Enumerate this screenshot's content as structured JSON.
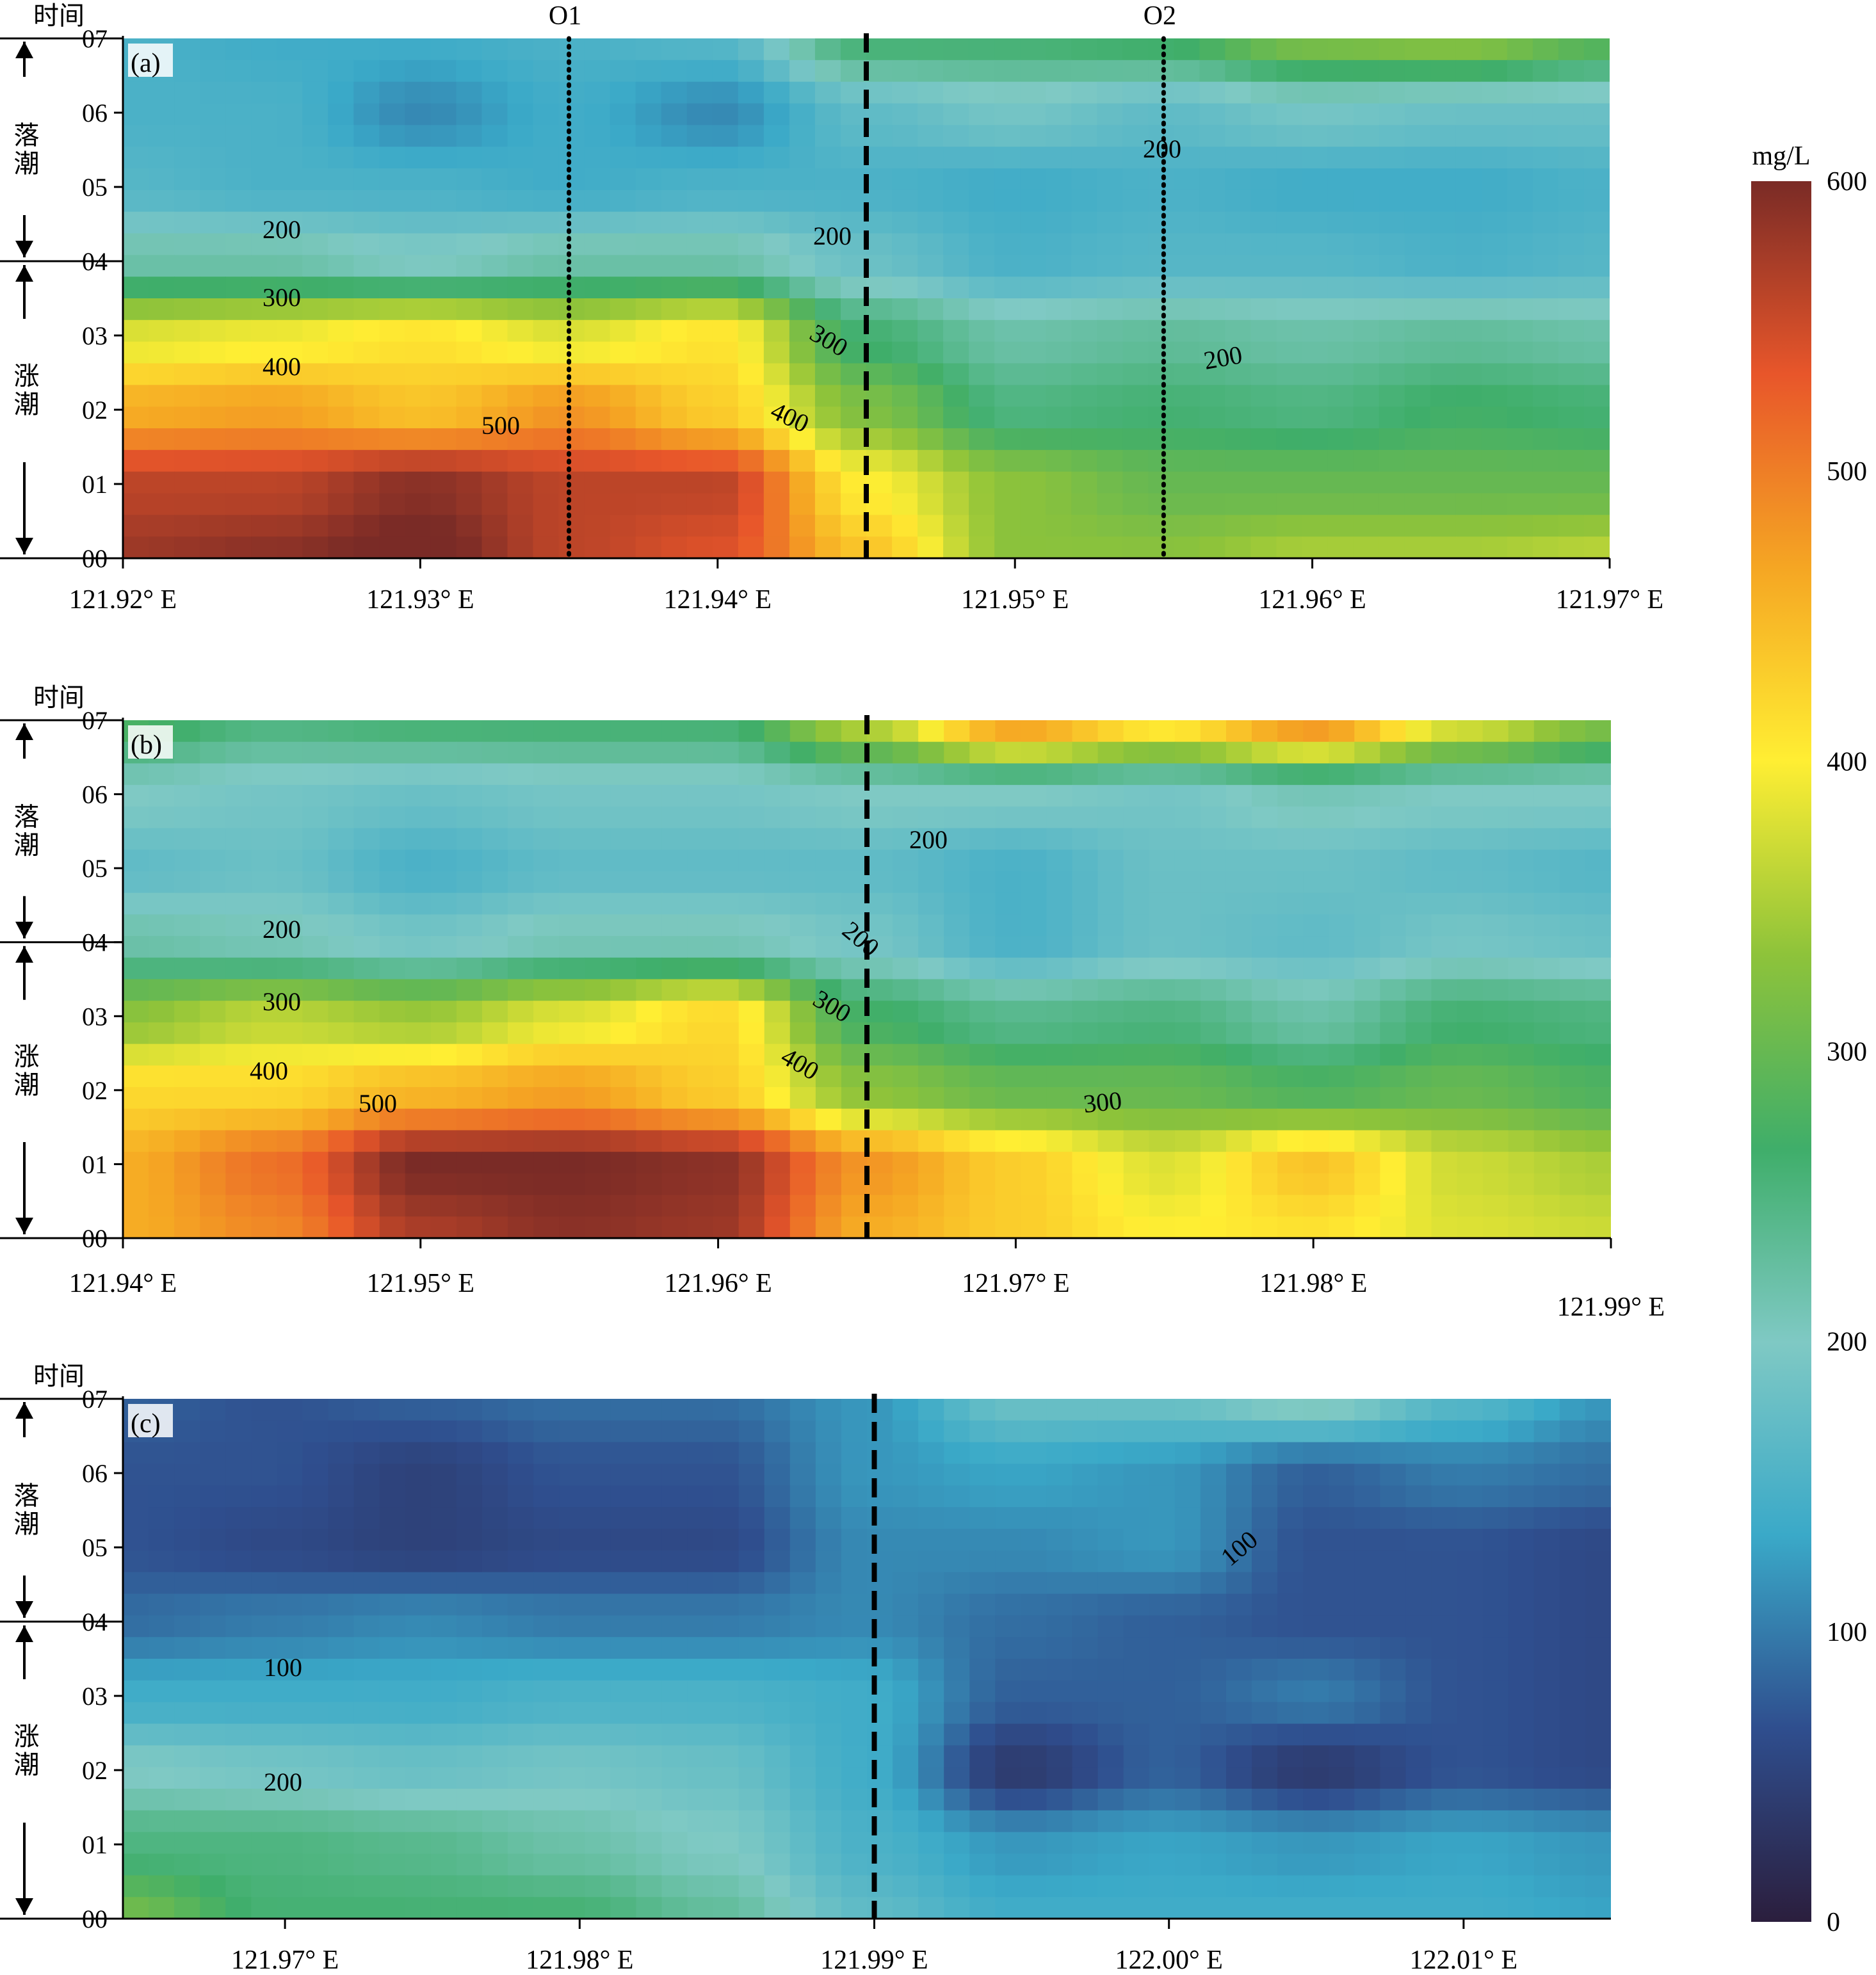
{
  "colors": {
    "scale": [
      "#2b1e3d",
      "#2f4e8e",
      "#3aa9c8",
      "#7fc9c4",
      "#3fae6a",
      "#8ec33a",
      "#ffee33",
      "#f5a623",
      "#e8562a",
      "#7a2b26"
    ],
    "contour": "#1a1a1a",
    "boundary": "#000000"
  },
  "colorbar": {
    "unit": "mg/L",
    "min": 0,
    "max": 600,
    "ticks": [
      "0",
      "100",
      "200",
      "300",
      "400",
      "500",
      "600"
    ]
  },
  "axis_common": {
    "y_title": "时间",
    "y_ticks": [
      "00",
      "01",
      "02",
      "03",
      "04",
      "05",
      "06",
      "07"
    ],
    "flood_label": "涨潮",
    "ebb_label": "落潮"
  },
  "panels": [
    {
      "label": "(a)",
      "x_ticks": [
        "121.92° E",
        "121.93° E",
        "121.94° E",
        "121.95° E",
        "121.96° E",
        "121.97° E"
      ],
      "markers": [
        "O1",
        "O2"
      ],
      "contour_labels": [
        "200",
        "200",
        "200",
        "200",
        "300",
        "300",
        "400",
        "400",
        "500"
      ]
    },
    {
      "label": "(b)",
      "x_ticks": [
        "121.94° E",
        "121.95° E",
        "121.96° E",
        "121.97° E",
        "121.98° E",
        "121.99° E"
      ],
      "markers": [],
      "contour_labels": [
        "200",
        "200",
        "200",
        "300",
        "300",
        "300",
        "400",
        "400",
        "500"
      ]
    },
    {
      "label": "(c)",
      "x_ticks": [
        "121.97° E",
        "121.98° E",
        "121.99° E",
        "122.00° E",
        "122.01° E"
      ],
      "markers": [],
      "contour_labels": [
        "100",
        "100",
        "200"
      ]
    }
  ],
  "chart_data": [
    {
      "type": "heatmap",
      "title": "(a)",
      "unit": "mg/L",
      "x_unit": "° E",
      "x": [
        121.92,
        121.925,
        121.93,
        121.935,
        121.94,
        121.945,
        121.95,
        121.955,
        121.96,
        121.965,
        121.97
      ],
      "y": [
        "00",
        "01",
        "02",
        "03",
        "04",
        "05",
        "06",
        "07"
      ],
      "z": [
        [
          580,
          590,
          610,
          560,
          540,
          440,
          330,
          330,
          350,
          350,
          360
        ],
        [
          560,
          560,
          590,
          560,
          560,
          400,
          330,
          300,
          300,
          300,
          300
        ],
        [
          460,
          470,
          440,
          480,
          430,
          320,
          250,
          260,
          250,
          270,
          260
        ],
        [
          380,
          390,
          410,
          380,
          410,
          260,
          220,
          230,
          220,
          230,
          220
        ],
        [
          220,
          220,
          200,
          220,
          220,
          180,
          150,
          160,
          160,
          150,
          160
        ],
        [
          160,
          150,
          150,
          140,
          150,
          150,
          140,
          150,
          140,
          140,
          150
        ],
        [
          150,
          150,
          110,
          140,
          110,
          170,
          190,
          170,
          190,
          180,
          180
        ],
        [
          150,
          140,
          140,
          150,
          160,
          260,
          260,
          270,
          320,
          330,
          290
        ]
      ],
      "boundary_x": 121.945,
      "markers": [
        {
          "name": "O1",
          "x": 121.935
        },
        {
          "name": "O2",
          "x": 121.955
        }
      ],
      "flood": "00-04",
      "ebb": "04-07",
      "contour_levels": [
        200,
        300,
        400,
        500
      ]
    },
    {
      "type": "heatmap",
      "title": "(b)",
      "unit": "mg/L",
      "x_unit": "° E",
      "x": [
        121.94,
        121.945,
        121.95,
        121.955,
        121.96,
        121.965,
        121.97,
        121.975,
        121.98,
        121.985,
        121.99
      ],
      "y": [
        "00",
        "01",
        "02",
        "03",
        "04",
        "05",
        "06",
        "07"
      ],
      "z": [
        [
          460,
          490,
          570,
          590,
          580,
          460,
          430,
          400,
          410,
          380,
          370
        ],
        [
          460,
          510,
          600,
          600,
          590,
          480,
          430,
          380,
          440,
          370,
          350
        ],
        [
          420,
          420,
          450,
          470,
          430,
          330,
          300,
          300,
          280,
          300,
          280
        ],
        [
          330,
          360,
          340,
          380,
          420,
          270,
          240,
          250,
          220,
          260,
          250
        ],
        [
          220,
          210,
          190,
          210,
          210,
          190,
          150,
          180,
          170,
          190,
          180
        ],
        [
          170,
          180,
          150,
          170,
          170,
          170,
          150,
          180,
          180,
          170,
          160
        ],
        [
          200,
          190,
          180,
          190,
          190,
          200,
          200,
          190,
          210,
          200,
          200
        ],
        [
          280,
          250,
          260,
          260,
          260,
          360,
          480,
          420,
          490,
          380,
          320
        ]
      ],
      "boundary_x": 121.965,
      "markers": [],
      "flood": "00-04",
      "ebb": "04-07",
      "contour_levels": [
        200,
        300,
        400,
        500
      ]
    },
    {
      "type": "heatmap",
      "title": "(c)",
      "unit": "mg/L",
      "x_unit": "° E",
      "x": [
        121.965,
        121.97,
        121.975,
        121.98,
        121.985,
        121.99,
        121.995,
        122.0,
        122.005,
        122.01,
        122.015
      ],
      "y": [
        "00",
        "01",
        "02",
        "03",
        "04",
        "05",
        "06",
        "07"
      ],
      "z": [
        [
          310,
          260,
          260,
          260,
          230,
          170,
          140,
          140,
          140,
          140,
          130
        ],
        [
          250,
          250,
          240,
          220,
          200,
          150,
          120,
          130,
          120,
          130,
          120
        ],
        [
          200,
          190,
          180,
          190,
          180,
          140,
          40,
          80,
          40,
          70,
          60
        ],
        [
          140,
          140,
          140,
          150,
          150,
          140,
          80,
          80,
          100,
          70,
          60
        ],
        [
          90,
          100,
          110,
          100,
          100,
          110,
          90,
          80,
          70,
          70,
          60
        ],
        [
          70,
          60,
          50,
          60,
          60,
          110,
          110,
          120,
          70,
          70,
          60
        ],
        [
          70,
          70,
          50,
          70,
          70,
          120,
          130,
          120,
          80,
          100,
          90
        ],
        [
          80,
          70,
          80,
          90,
          90,
          120,
          180,
          180,
          210,
          160,
          120
        ]
      ],
      "boundary_x": 121.99,
      "markers": [],
      "flood": "00-04",
      "ebb": "04-07",
      "contour_levels": [
        100,
        200
      ]
    }
  ]
}
